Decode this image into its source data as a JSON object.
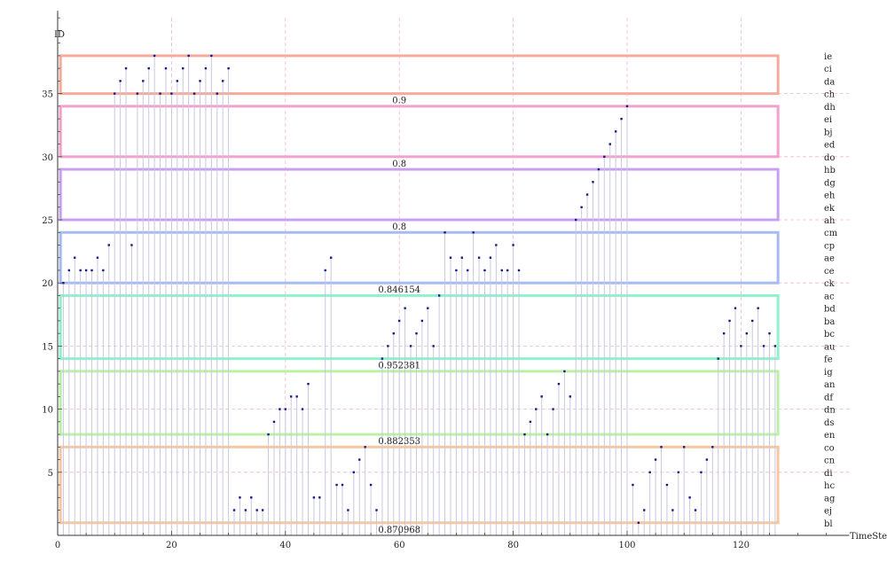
{
  "chart_data": {
    "type": "scatter",
    "ylabel": "ID",
    "xlabel": "TimeStep",
    "xlim": [
      0,
      139
    ],
    "ylim": [
      0,
      41
    ],
    "xticks": [
      0,
      20,
      40,
      60,
      80,
      100,
      120
    ],
    "yticks": [
      5,
      10,
      15,
      20,
      25,
      30,
      35
    ],
    "grid": "dashed",
    "categories": [
      "bl",
      "ej",
      "ag",
      "hc",
      "di",
      "cn",
      "co",
      "en",
      "ds",
      "dn",
      "df",
      "an",
      "ig",
      "fe",
      "au",
      "bc",
      "ba",
      "bd",
      "ac",
      "ck",
      "ce",
      "ae",
      "cp",
      "cm",
      "ah",
      "ek",
      "eh",
      "dg",
      "hb",
      "do",
      "ed",
      "bj",
      "ei",
      "dh",
      "ch",
      "da",
      "ci",
      "ie"
    ],
    "series": [
      {
        "x": [
          1,
          2,
          3,
          4,
          5,
          6,
          7,
          8,
          9,
          10,
          11,
          12,
          13,
          14,
          15,
          16,
          17,
          18,
          19,
          20,
          21,
          22,
          23,
          24,
          25,
          26,
          27,
          28,
          29,
          30,
          31,
          32,
          33,
          34,
          35,
          36,
          37,
          38,
          39,
          40,
          41,
          42,
          43,
          44,
          45,
          46,
          47,
          48,
          49,
          50,
          51,
          52,
          53,
          54,
          55,
          56,
          57,
          58,
          59,
          60,
          61,
          62,
          63,
          64,
          65,
          66,
          67,
          68,
          69,
          70,
          71,
          72,
          73,
          74,
          75,
          76,
          77,
          78,
          79,
          80,
          81,
          82,
          83,
          84,
          85,
          86,
          87,
          88,
          89,
          90,
          91,
          92,
          93,
          94,
          95,
          96,
          97,
          98,
          99,
          100,
          101,
          102,
          103,
          104,
          105,
          106,
          107,
          108,
          109,
          110,
          111,
          112,
          113,
          114,
          115,
          116,
          117,
          118,
          119,
          120,
          121,
          122,
          123,
          124,
          125,
          126
        ],
        "y": [
          20,
          21,
          22,
          21,
          21,
          21,
          22,
          21,
          23,
          35,
          36,
          37,
          23,
          35,
          36,
          37,
          38,
          35,
          37,
          35,
          36,
          37,
          38,
          35,
          36,
          37,
          38,
          35,
          36,
          37,
          2,
          3,
          2,
          3,
          2,
          2,
          8,
          9,
          10,
          10,
          11,
          11,
          10,
          12,
          3,
          3,
          21,
          22,
          4,
          4,
          2,
          5,
          6,
          7,
          4,
          2,
          14,
          15,
          16,
          17,
          18,
          15,
          16,
          17,
          18,
          15,
          19,
          24,
          22,
          21,
          22,
          21,
          24,
          22,
          21,
          22,
          23,
          21,
          21,
          23,
          21,
          8,
          9,
          10,
          11,
          8,
          10,
          12,
          13,
          11,
          25,
          26,
          27,
          28,
          29,
          30,
          31,
          32,
          33,
          34,
          4,
          1,
          2,
          5,
          6,
          7,
          4,
          2,
          5,
          7,
          3,
          2,
          5,
          6,
          7,
          14,
          16,
          17,
          18,
          15,
          16,
          17,
          18,
          15,
          16,
          15
        ]
      }
    ],
    "bands": [
      {
        "ymin": 1,
        "ymax": 7,
        "label": "0.870968",
        "color": "#f9c79f"
      },
      {
        "ymin": 8,
        "ymax": 13,
        "label": "0.882353",
        "color": "#b9f2a4"
      },
      {
        "ymin": 14,
        "ymax": 19,
        "label": "0.952381",
        "color": "#8ff2cc"
      },
      {
        "ymin": 20,
        "ymax": 24,
        "label": "0.846154",
        "color": "#a8baf2"
      },
      {
        "ymin": 25,
        "ymax": 29,
        "label": "0.8",
        "color": "#c8a0f2"
      },
      {
        "ymin": 30,
        "ymax": 34,
        "label": "0.8",
        "color": "#f2a2cc"
      },
      {
        "ymin": 35,
        "ymax": 38,
        "label": "0.9",
        "color": "#f6ab9c"
      }
    ],
    "band_xrange": [
      0.5,
      126.5
    ],
    "colors": {
      "stem": "#c8c8e0",
      "point": "#1a1a8c",
      "grid": "#f2b8c4",
      "axis": "#333333"
    }
  }
}
